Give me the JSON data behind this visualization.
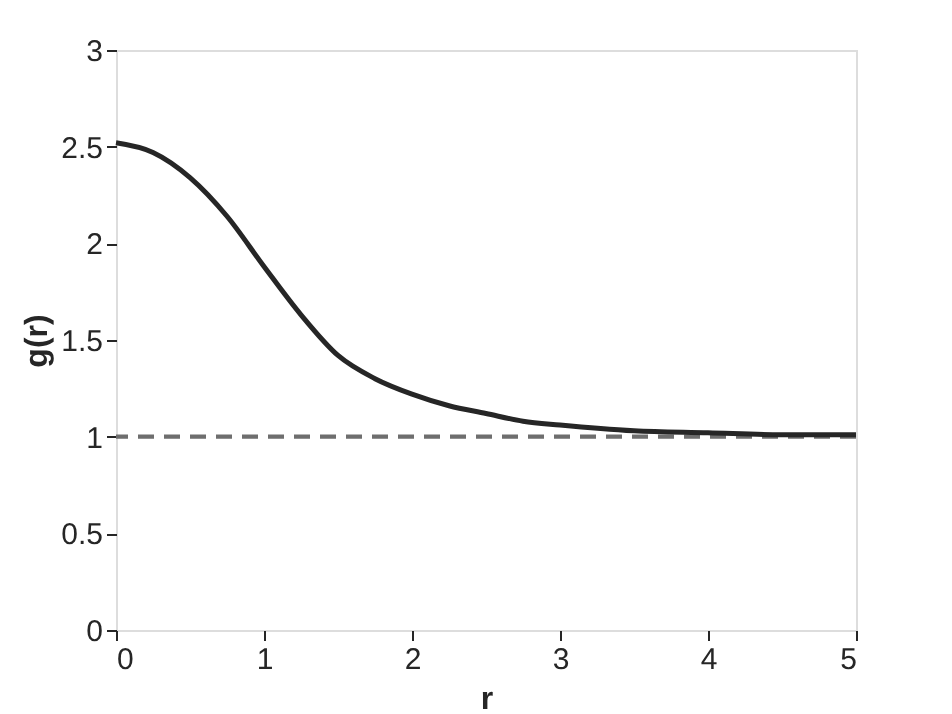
{
  "chart_data": {
    "type": "line",
    "xlabel": "r",
    "ylabel": "g(r)",
    "x": [
      0,
      0.25,
      0.5,
      0.75,
      1,
      1.25,
      1.5,
      1.75,
      2,
      2.25,
      2.5,
      2.75,
      3,
      3.5,
      4,
      4.5,
      5
    ],
    "series": [
      {
        "color": "#262626",
        "values": [
          2.52,
          2.47,
          2.34,
          2.14,
          1.88,
          1.63,
          1.42,
          1.3,
          1.22,
          1.16,
          1.12,
          1.08,
          1.06,
          1.03,
          1.02,
          1.01,
          1.01
        ]
      }
    ],
    "xlim": [
      0,
      5
    ],
    "xticks": [
      0,
      1,
      2,
      3,
      4,
      5
    ],
    "ylim": [
      0,
      3
    ],
    "yticks": [
      0,
      0.5,
      1,
      1.5,
      2,
      2.5,
      3
    ],
    "ref_lines": [
      {
        "axis": "y",
        "value": 1,
        "color": "#6e6e6e",
        "line_style": "dashed"
      }
    ],
    "grid": false,
    "marker": "none",
    "line_style": "solid"
  }
}
